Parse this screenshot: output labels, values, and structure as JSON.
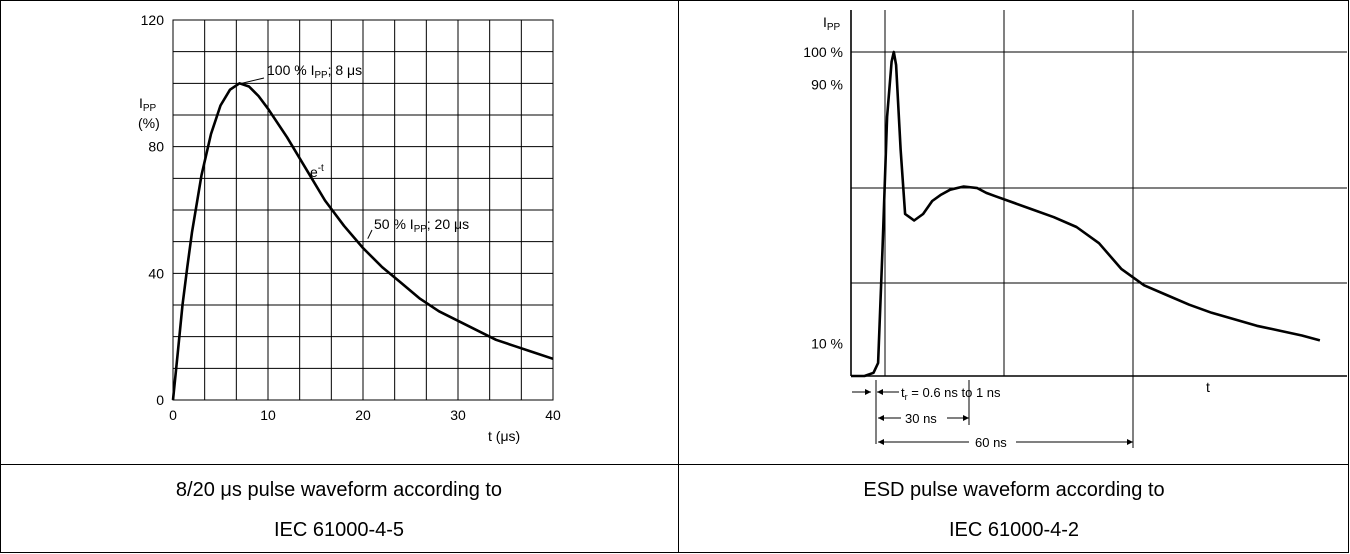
{
  "chart_data": [
    {
      "type": "line",
      "xlabel": "t (μs)",
      "ylabel_lines": [
        "I",
        "PP",
        "(%)"
      ],
      "xlim": [
        0,
        40
      ],
      "ylim": [
        0,
        120
      ],
      "x_ticks": [
        0,
        10,
        20,
        30,
        40
      ],
      "y_ticks": [
        0,
        40,
        80,
        120
      ],
      "grid": true,
      "series": [
        {
          "x": [
            0,
            0.5,
            1,
            1.5,
            2,
            3,
            4,
            5,
            6,
            7,
            8,
            9,
            10,
            12,
            14,
            16,
            18,
            20,
            22,
            24,
            26,
            28,
            30,
            32,
            34,
            36,
            38,
            40
          ],
          "y": [
            0,
            15,
            30,
            42,
            53,
            71,
            84,
            93,
            98,
            100,
            99,
            96,
            92,
            83,
            73,
            63,
            55,
            48,
            42,
            37,
            32,
            28,
            25,
            22,
            19,
            17,
            15,
            13
          ]
        }
      ],
      "annotations": [
        {
          "text_parts": [
            "100 % I",
            "PP",
            "; 8 μs"
          ],
          "x": 7,
          "y": 100
        },
        {
          "text_parts": [
            "e",
            "-t"
          ],
          "x": 14.5,
          "y": 71
        },
        {
          "text_parts": [
            "50 % I",
            "PP",
            "; 20 μs"
          ],
          "x": 20.5,
          "y": 50
        }
      ]
    },
    {
      "type": "line",
      "ylabel_parts": [
        "I",
        "PP"
      ],
      "xlabel": "t",
      "xlim": [
        0,
        110
      ],
      "ylim": [
        0,
        100
      ],
      "y_ticks_labeled": [
        {
          "value": 100,
          "label": "100 %"
        },
        {
          "value": 90,
          "label": "90 %"
        },
        {
          "value": 10,
          "label": "10 %"
        }
      ],
      "grid": true,
      "series": [
        {
          "x": [
            0,
            3,
            5,
            6,
            7,
            8,
            9,
            9.5,
            10,
            11,
            12,
            13,
            14,
            16,
            18,
            20,
            22,
            25,
            28,
            30,
            32,
            35,
            40,
            45,
            50,
            55,
            60,
            65,
            70,
            75,
            80,
            85,
            90,
            95,
            100,
            104
          ],
          "y": [
            0,
            0,
            1,
            4,
            40,
            80,
            97,
            100,
            96,
            70,
            50,
            49,
            48,
            50,
            54,
            56,
            57.5,
            58.5,
            58,
            56.5,
            55.5,
            54,
            51.5,
            49,
            46,
            41,
            33,
            28,
            25,
            22,
            19.5,
            17.5,
            15.5,
            14,
            12.5,
            11
          ]
        }
      ],
      "annotations": [
        {
          "text_parts": [
            "t",
            "r",
            " = 0.6 ns to 1 ns"
          ]
        },
        {
          "text": "30 ns",
          "x_from": 9.5,
          "x_to": 38
        },
        {
          "text": "60 ns",
          "x_from": 9.5,
          "x_to": 81
        }
      ]
    }
  ],
  "captions": {
    "left_line1": "8/20 μs pulse waveform according to",
    "left_line2": "IEC 61000-4-5",
    "right_line1": "ESD pulse waveform according to",
    "right_line2": "IEC 61000-4-2"
  }
}
